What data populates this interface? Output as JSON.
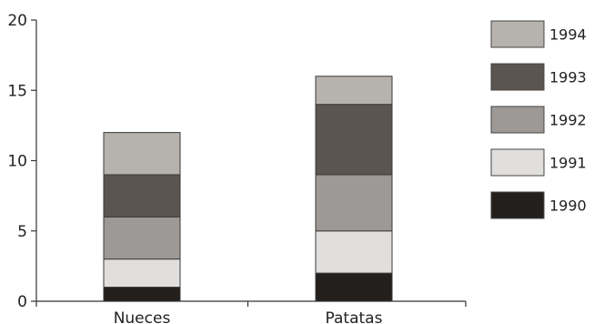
{
  "chart_data": {
    "type": "bar",
    "stacked": true,
    "categories": [
      "Nueces",
      "Patatas"
    ],
    "series": [
      {
        "name": "1990",
        "values": [
          1,
          2
        ],
        "color": "#221f1c"
      },
      {
        "name": "1991",
        "values": [
          2,
          3
        ],
        "color": "#e0dfde"
      },
      {
        "name": "1992",
        "values": [
          3,
          4
        ],
        "color": "#9d9997"
      },
      {
        "name": "1993",
        "values": [
          3,
          5
        ],
        "color": "#5c544e"
      },
      {
        "name": "1994",
        "values": [
          3,
          2
        ],
        "color": "#b6b2ae"
      }
    ],
    "ylim": [
      0,
      20
    ],
    "yticks": [
      "0",
      "5",
      "10",
      "15",
      "20"
    ],
    "title": "",
    "xlabel": "",
    "ylabel": "",
    "grid": false,
    "legend_position": "right",
    "legend_order": [
      "1994",
      "1993",
      "1992",
      "1991",
      "1990"
    ]
  }
}
